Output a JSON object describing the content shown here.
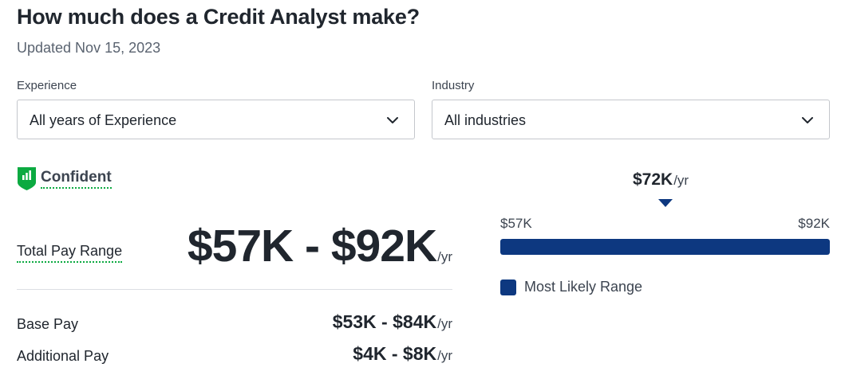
{
  "header": {
    "title": "How much does a Credit Analyst make?",
    "updated": "Updated Nov 15, 2023"
  },
  "filters": {
    "experience": {
      "label": "Experience",
      "value": "All years of Experience"
    },
    "industry": {
      "label": "Industry",
      "value": "All industries"
    }
  },
  "confidence": {
    "label": "Confident",
    "icon": "bar-chart-shield-icon",
    "color": "#0caa41"
  },
  "total_pay": {
    "label": "Total Pay Range",
    "range": "$57K - $92K",
    "unit": "/yr"
  },
  "breakdown": [
    {
      "label": "Base Pay",
      "range": "$53K - $84K",
      "unit": "/yr"
    },
    {
      "label": "Additional Pay",
      "range": "$4K - $8K",
      "unit": "/yr"
    }
  ],
  "range_chart": {
    "median": "$72K",
    "median_unit": "/yr",
    "min_label": "$57K",
    "max_label": "$92K",
    "likely_range_fraction": 1.0,
    "legend_label": "Most Likely Range",
    "bar_color": "#0d3880"
  }
}
